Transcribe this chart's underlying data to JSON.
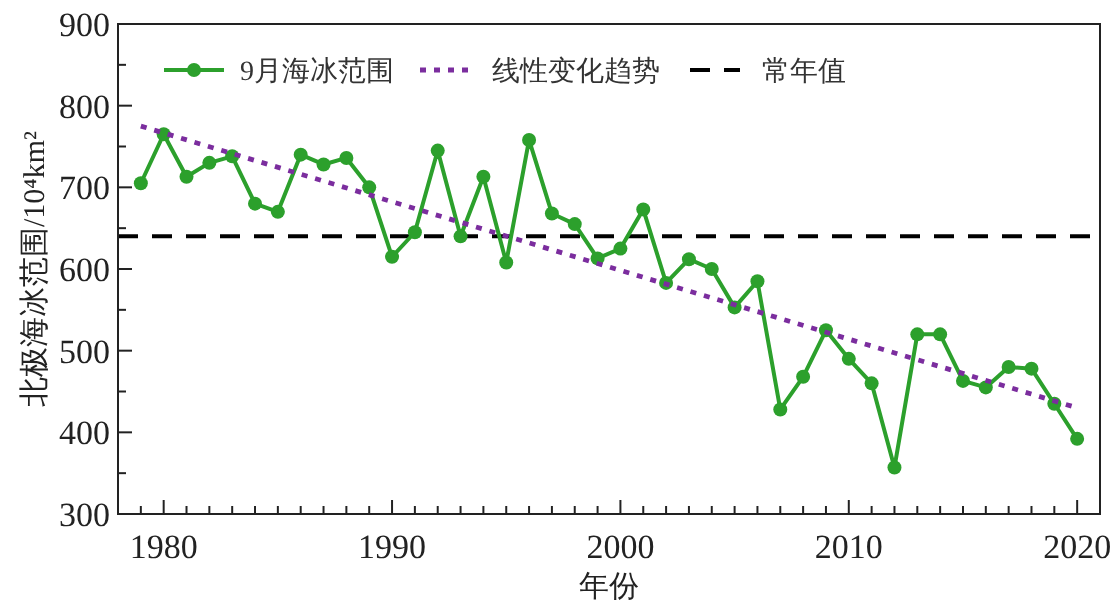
{
  "chart_data": {
    "type": "line",
    "xlabel": "年份",
    "ylabel": "北极海冰范围/10⁴km²",
    "xlim": [
      1978,
      2021
    ],
    "ylim": [
      300,
      900
    ],
    "xticks": [
      {
        "value": 1979,
        "label": null
      },
      1980,
      {
        "value": 1981,
        "label": null
      },
      {
        "value": 1982,
        "label": null
      },
      {
        "value": 1983,
        "label": null
      },
      {
        "value": 1984,
        "label": null
      },
      {
        "value": 1985,
        "label": null
      },
      {
        "value": 1986,
        "label": null
      },
      {
        "value": 1987,
        "label": null
      },
      {
        "value": 1988,
        "label": null
      },
      {
        "value": 1989,
        "label": null
      },
      1990,
      {
        "value": 1991,
        "label": null
      },
      {
        "value": 1992,
        "label": null
      },
      {
        "value": 1993,
        "label": null
      },
      {
        "value": 1994,
        "label": null
      },
      {
        "value": 1995,
        "label": null
      },
      {
        "value": 1996,
        "label": null
      },
      {
        "value": 1997,
        "label": null
      },
      {
        "value": 1998,
        "label": null
      },
      {
        "value": 1999,
        "label": null
      },
      2000,
      {
        "value": 2001,
        "label": null
      },
      {
        "value": 2002,
        "label": null
      },
      {
        "value": 2003,
        "label": null
      },
      {
        "value": 2004,
        "label": null
      },
      {
        "value": 2005,
        "label": null
      },
      {
        "value": 2006,
        "label": null
      },
      {
        "value": 2007,
        "label": null
      },
      {
        "value": 2008,
        "label": null
      },
      {
        "value": 2009,
        "label": null
      },
      2010,
      {
        "value": 2011,
        "label": null
      },
      {
        "value": 2012,
        "label": null
      },
      {
        "value": 2013,
        "label": null
      },
      {
        "value": 2014,
        "label": null
      },
      {
        "value": 2015,
        "label": null
      },
      {
        "value": 2016,
        "label": null
      },
      {
        "value": 2017,
        "label": null
      },
      {
        "value": 2018,
        "label": null
      },
      {
        "value": 2019,
        "label": null
      },
      2020
    ],
    "yticks": [
      300,
      {
        "value": 350,
        "label": null
      },
      400,
      {
        "value": 450,
        "label": null
      },
      500,
      {
        "value": 550,
        "label": null
      },
      600,
      {
        "value": 650,
        "label": null
      },
      700,
      {
        "value": 750,
        "label": null
      },
      800,
      {
        "value": 850,
        "label": null
      },
      900
    ],
    "grid": false,
    "legend": "top",
    "series": [
      {
        "name": "9月海冰范围",
        "color": "#2ca02c",
        "marker": "circle",
        "line_style": "solid",
        "x": [
          1979,
          1980,
          1981,
          1982,
          1983,
          1984,
          1985,
          1986,
          1987,
          1988,
          1989,
          1990,
          1991,
          1992,
          1993,
          1994,
          1995,
          1996,
          1997,
          1998,
          1999,
          2000,
          2001,
          2002,
          2003,
          2004,
          2005,
          2006,
          2007,
          2008,
          2009,
          2010,
          2011,
          2012,
          2013,
          2014,
          2015,
          2016,
          2017,
          2018,
          2019,
          2020
        ],
        "values": [
          705,
          765,
          713,
          730,
          738,
          680,
          670,
          740,
          728,
          736,
          700,
          615,
          645,
          745,
          640,
          713,
          608,
          758,
          668,
          655,
          613,
          625,
          673,
          583,
          612,
          600,
          553,
          585,
          428,
          468,
          525,
          490,
          460,
          357,
          520,
          520,
          463,
          455,
          480,
          478,
          435,
          392
        ]
      },
      {
        "name": "线性变化趋势",
        "color": "#7b2d9e",
        "marker": "none",
        "line_style": "dotted",
        "x": [
          1979,
          2020
        ],
        "values": [
          775,
          430
        ]
      }
    ],
    "ref_lines": [
      {
        "axis": "y",
        "value": 640,
        "label": "常年值",
        "color": "#000000",
        "line_style": "dashed"
      }
    ]
  }
}
